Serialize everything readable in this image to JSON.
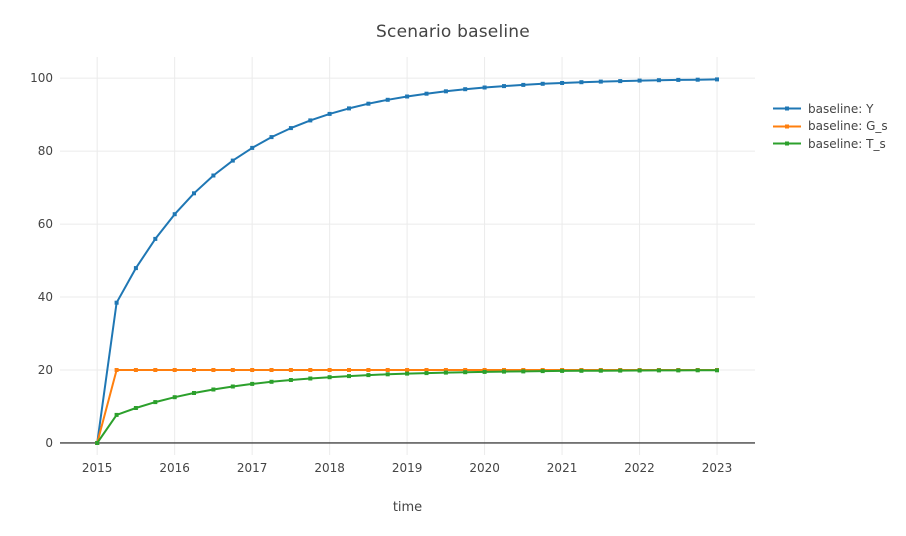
{
  "figure": {
    "title": "Scenario baseline",
    "background": "#ffffff"
  },
  "chart_data": {
    "type": "line",
    "mode": "lines+markers",
    "title": "Scenario baseline",
    "xlabel": "time",
    "ylabel": "",
    "x": [
      2015,
      2015.25,
      2015.5,
      2015.75,
      2016,
      2016.25,
      2016.5,
      2016.75,
      2017,
      2017.25,
      2017.5,
      2017.75,
      2018,
      2018.25,
      2018.5,
      2018.75,
      2019,
      2019.25,
      2019.5,
      2019.75,
      2020,
      2020.25,
      2020.5,
      2020.75,
      2021,
      2021.25,
      2021.5,
      2021.75,
      2022,
      2022.25,
      2022.5,
      2022.75,
      2023
    ],
    "series": [
      {
        "name": "baseline: Y",
        "color": "#1f77b4",
        "values": [
          0,
          38.46,
          47.93,
          55.94,
          62.72,
          68.45,
          73.31,
          77.41,
          80.89,
          83.83,
          86.32,
          88.42,
          90.2,
          91.71,
          92.99,
          94.06,
          94.98,
          95.75,
          96.4,
          96.96,
          97.43,
          97.82,
          98.16,
          98.44,
          98.68,
          98.88,
          99.06,
          99.2,
          99.32,
          99.43,
          99.52,
          99.59,
          99.65
        ]
      },
      {
        "name": "baseline: G_s",
        "color": "#ff7f0e",
        "values": [
          0,
          20,
          20,
          20,
          20,
          20,
          20,
          20,
          20,
          20,
          20,
          20,
          20,
          20,
          20,
          20,
          20,
          20,
          20,
          20,
          20,
          20,
          20,
          20,
          20,
          20,
          20,
          20,
          20,
          20,
          20,
          20,
          20
        ]
      },
      {
        "name": "baseline: T_s",
        "color": "#2ca02c",
        "values": [
          0,
          7.69,
          9.59,
          11.19,
          12.54,
          13.69,
          14.66,
          15.48,
          16.18,
          16.77,
          17.26,
          17.68,
          18.04,
          18.34,
          18.6,
          18.81,
          19.0,
          19.15,
          19.28,
          19.39,
          19.49,
          19.56,
          19.63,
          19.69,
          19.74,
          19.78,
          19.81,
          19.84,
          19.86,
          19.89,
          19.9,
          19.92,
          19.93
        ]
      }
    ],
    "xticks": [
      2015,
      2016,
      2017,
      2018,
      2019,
      2020,
      2021,
      2022,
      2023
    ],
    "yticks": [
      0,
      20,
      40,
      60,
      80,
      100
    ],
    "xlim": [
      2014.52,
      2023.49
    ],
    "ylim": [
      -3.3,
      105.8
    ],
    "grid": true,
    "legend_position": "right"
  },
  "style": {
    "grid_color": "#ebebeb",
    "zero_line_color": "#444444",
    "tick_color": "#444444",
    "text_color": "#444444",
    "marker_size": 4,
    "line_width": 2
  }
}
